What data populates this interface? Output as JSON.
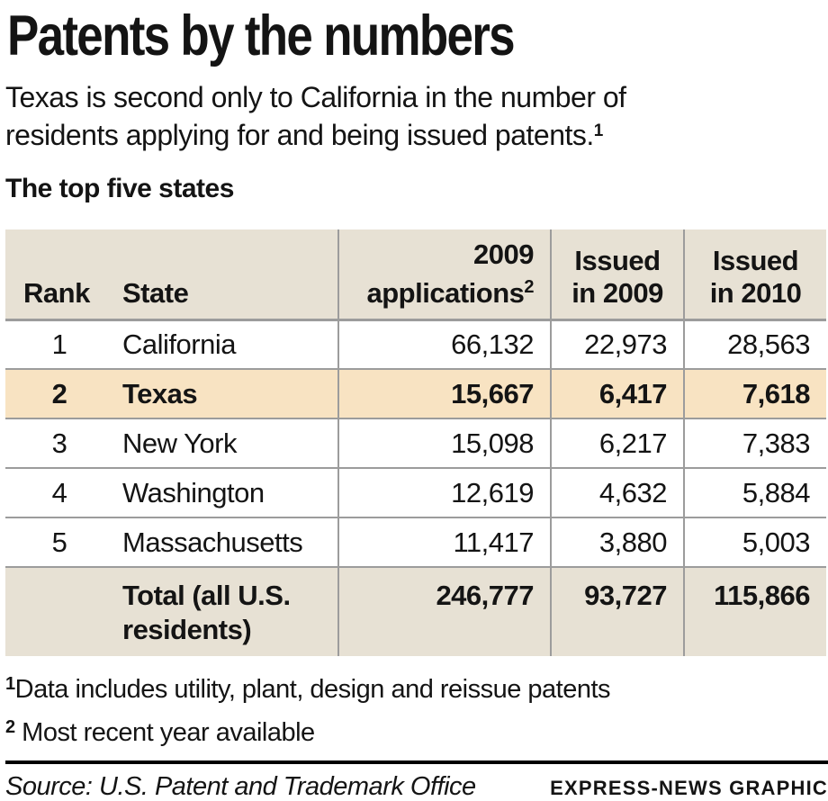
{
  "colors": {
    "header_bg": "#e7e1d4",
    "highlight_bg": "#f8e3c2",
    "grid_line": "#9c9c9c",
    "text": "#141414"
  },
  "page": {
    "title": "Patents by the numbers",
    "subtitle_line1": "Texas is second only to California in the number of",
    "subtitle_line2": "residents applying for and being issued patents.",
    "subtitle_sup": "1",
    "section_label": "The top five states"
  },
  "table": {
    "headers": {
      "rank": "Rank",
      "state": "State",
      "applications": "2009\napplications",
      "applications_sup": "2",
      "issued_2009": "Issued\nin 2009",
      "issued_2010": "Issued\nin 2010"
    },
    "rows": [
      {
        "rank": "1",
        "state": "California",
        "applications": "66,132",
        "issued_2009": "22,973",
        "issued_2010": "28,563"
      },
      {
        "rank": "2",
        "state": "Texas",
        "applications": "15,667",
        "issued_2009": "6,417",
        "issued_2010": "7,618"
      },
      {
        "rank": "3",
        "state": "New York",
        "applications": "15,098",
        "issued_2009": "6,217",
        "issued_2010": "7,383"
      },
      {
        "rank": "4",
        "state": "Washington",
        "applications": "12,619",
        "issued_2009": "4,632",
        "issued_2010": "5,884"
      },
      {
        "rank": "5",
        "state": "Massachusetts",
        "applications": "11,417",
        "issued_2009": "3,880",
        "issued_2010": "5,003"
      }
    ],
    "total": {
      "label": "Total (all U.S. residents)",
      "applications": "246,777",
      "issued_2009": "93,727",
      "issued_2010": "115,866"
    }
  },
  "footnotes": [
    {
      "sup": "1",
      "text": "Data includes utility, plant, design and reissue patents"
    },
    {
      "sup": "2",
      "text": " Most recent year available"
    }
  ],
  "footer": {
    "source": "Source: U.S. Patent and Trademark Office",
    "credit": "EXPRESS-NEWS GRAPHIC"
  },
  "chart_data": {
    "type": "table",
    "title": "Patents by the numbers",
    "subtitle": "Texas is second only to California in the number of residents applying for and being issued patents.",
    "section": "The top five states",
    "columns": [
      "Rank",
      "State",
      "2009 applications",
      "Issued in 2009",
      "Issued in 2010"
    ],
    "rows": [
      [
        1,
        "California",
        66132,
        22973,
        28563
      ],
      [
        2,
        "Texas",
        15667,
        6417,
        7618
      ],
      [
        3,
        "New York",
        15098,
        6217,
        7383
      ],
      [
        4,
        "Washington",
        12619,
        4632,
        5884
      ],
      [
        5,
        "Massachusetts",
        11417,
        3880,
        5003
      ]
    ],
    "total_row": [
      "",
      "Total (all U.S. residents)",
      246777,
      93727,
      115866
    ],
    "highlighted_row": "Texas",
    "footnotes": [
      "Data includes utility, plant, design and reissue patents",
      "Most recent year available"
    ],
    "source": "U.S. Patent and Trademark Office",
    "credit": "EXPRESS-NEWS GRAPHIC"
  }
}
